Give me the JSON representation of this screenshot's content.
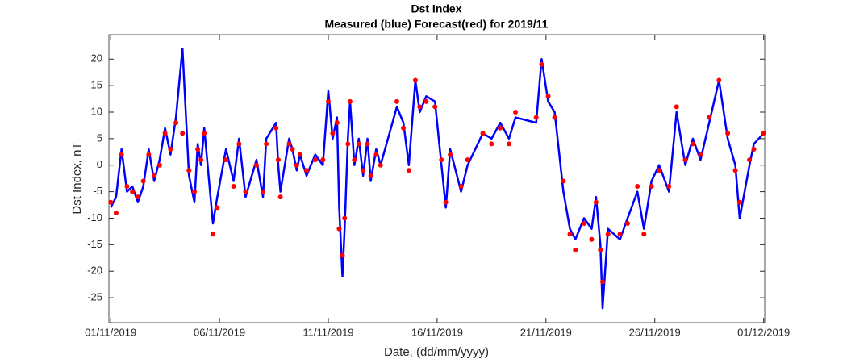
{
  "chart_data": {
    "type": "line",
    "title": "Dst Index",
    "subtitle": "Measured (blue) Forecast(red) for 2019/11",
    "xlabel": "Date, (dd/mm/yyyy)",
    "ylabel": "Dst Index, nT",
    "x": [
      0,
      0.25,
      0.5,
      0.75,
      1.0,
      1.25,
      1.5,
      1.75,
      2.0,
      2.25,
      2.5,
      2.75,
      3.0,
      3.3,
      3.6,
      3.85,
      4.0,
      4.15,
      4.3,
      4.7,
      4.9,
      5.3,
      5.65,
      5.9,
      6.2,
      6.7,
      7.0,
      7.15,
      7.6,
      7.7,
      7.8,
      8.2,
      8.35,
      8.55,
      8.7,
      9.0,
      9.4,
      9.75,
      10.0,
      10.2,
      10.4,
      10.5,
      10.65,
      10.75,
      10.9,
      11.0,
      11.2,
      11.4,
      11.6,
      11.8,
      11.95,
      12.2,
      12.4,
      13.15,
      13.45,
      13.7,
      14.0,
      14.2,
      14.5,
      14.9,
      15.2,
      15.4,
      15.6,
      16.1,
      16.4,
      17.1,
      17.5,
      17.9,
      18.3,
      18.6,
      19.55,
      19.8,
      20.1,
      20.4,
      20.8,
      21.1,
      21.35,
      21.75,
      22.1,
      22.3,
      22.5,
      22.6,
      22.85,
      23.4,
      23.75,
      24.2,
      24.5,
      24.85,
      25.2,
      25.65,
      26.0,
      26.4,
      26.75,
      27.1,
      27.5,
      27.95,
      28.35,
      28.7,
      28.9,
      29.35,
      29.55,
      30.0
    ],
    "series": [
      {
        "name": "Measured",
        "color": "#0000ff",
        "style": "line",
        "values": [
          -8,
          -6,
          3,
          -5,
          -4,
          -7,
          -4,
          3,
          -3,
          1,
          7,
          2,
          9,
          22,
          -2,
          -7,
          4,
          0,
          7,
          -11,
          -6,
          3,
          -3,
          5,
          -6,
          1,
          -6,
          5,
          8,
          0,
          -5,
          5,
          3,
          -1,
          2,
          -2,
          2,
          0,
          14,
          5,
          9,
          -8,
          -21,
          -12,
          5,
          12,
          0,
          5,
          -2,
          5,
          -3,
          3,
          0,
          11,
          8,
          0,
          16,
          10,
          13,
          12,
          0,
          -8,
          3,
          -5,
          0,
          6,
          5,
          8,
          5,
          9,
          8,
          20,
          12,
          10,
          -5,
          -12,
          -14,
          -10,
          -12,
          -6,
          -15,
          -27,
          -12,
          -14,
          -10,
          -5,
          -12,
          -3,
          0,
          -5,
          10,
          0,
          5,
          1,
          8,
          16,
          5,
          0,
          -10,
          0,
          4,
          6
        ]
      },
      {
        "name": "Forecast",
        "color": "#ff0000",
        "style": "markers",
        "values": [
          -7,
          -9,
          2,
          -4,
          -5,
          -6,
          -3,
          2,
          -2,
          0,
          6,
          3,
          8,
          6,
          -1,
          -5,
          3,
          1,
          6,
          -13,
          -8,
          1,
          -4,
          4,
          -5,
          0,
          -5,
          4,
          7,
          1,
          -6,
          4,
          3,
          0,
          2,
          -1,
          1,
          1,
          12,
          6,
          8,
          -12,
          -17,
          -10,
          4,
          12,
          1,
          4,
          -1,
          4,
          -2,
          2,
          0,
          12,
          7,
          -1,
          16,
          11,
          12,
          11,
          1,
          -7,
          2,
          -4,
          1,
          6,
          4,
          7,
          4,
          10,
          9,
          19,
          13,
          9,
          -3,
          -13,
          -16,
          -11,
          -14,
          -7,
          -16,
          -22,
          -13,
          -13,
          -11,
          -4,
          -13,
          -4,
          -1,
          -4,
          11,
          1,
          4,
          2,
          9,
          16,
          6,
          -1,
          -7,
          1,
          3,
          6
        ]
      }
    ],
    "xlim": [
      -0.08,
      30.05
    ],
    "xticks": [
      {
        "value": 0,
        "label": "01/11/2019"
      },
      {
        "value": 5,
        "label": "06/11/2019"
      },
      {
        "value": 10,
        "label": "11/11/2019"
      },
      {
        "value": 15,
        "label": "16/11/2019"
      },
      {
        "value": 20,
        "label": "21/11/2019"
      },
      {
        "value": 25,
        "label": "26/11/2019"
      },
      {
        "value": 30,
        "label": "01/12/2019"
      }
    ],
    "ylim": [
      -29.7,
      24.6
    ],
    "yticks": [
      -25,
      -20,
      -15,
      -10,
      -5,
      0,
      5,
      10,
      15,
      20
    ],
    "grid": false
  }
}
